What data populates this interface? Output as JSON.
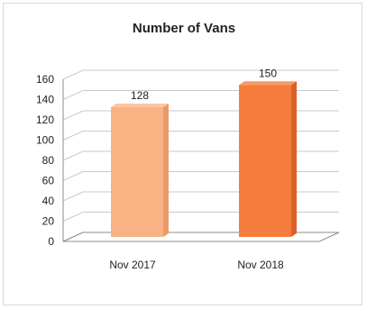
{
  "chart_data": {
    "type": "bar",
    "title": "Number of Vans",
    "categories": [
      "Nov 2017",
      "Nov 2018"
    ],
    "values": [
      128,
      150
    ],
    "data_labels": [
      "128",
      "150"
    ],
    "ylim": [
      0,
      160
    ],
    "yticks": [
      0,
      20,
      40,
      60,
      80,
      100,
      120,
      140,
      160
    ],
    "xlabel": "",
    "ylabel": "",
    "grid": true,
    "legend": "none",
    "style": "3d-column",
    "colors": {
      "bars": [
        "#f9b283",
        "#f47c3c"
      ],
      "bar_tops": [
        "#fbc8a3",
        "#f79a63"
      ],
      "bar_sides": [
        "#e99a68",
        "#d9622a"
      ],
      "gridlines": "#c9c9c9",
      "axis": "#8c8c8c"
    }
  }
}
